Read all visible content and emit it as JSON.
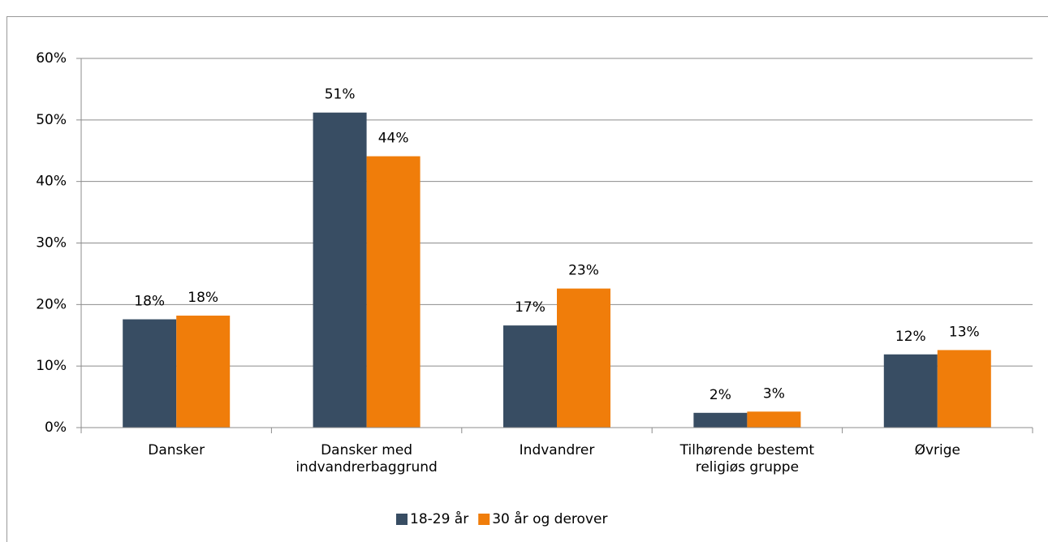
{
  "chart_data": {
    "type": "bar",
    "categories": [
      "Dansker",
      "Dansker med indvandrerbaggrund",
      "Indvandrer",
      "Tilhørende bestemt religiøs gruppe",
      "Øvrige"
    ],
    "series": [
      {
        "name": "18-29 år",
        "color": "#384d63",
        "values": [
          17.6,
          51.2,
          16.6,
          2.4,
          11.9
        ],
        "value_labels": [
          "18%",
          "51%",
          "17%",
          "2%",
          "12%"
        ]
      },
      {
        "name": "30 år og derover",
        "color": "#f07d0a",
        "values": [
          18.2,
          44.1,
          22.6,
          2.6,
          12.6
        ],
        "value_labels": [
          "18%",
          "44%",
          "23%",
          "3%",
          "13%"
        ]
      }
    ],
    "ylim": [
      0,
      60
    ],
    "yticks": [
      {
        "value": 0,
        "label": "0%"
      },
      {
        "value": 10,
        "label": "10%"
      },
      {
        "value": 20,
        "label": "20%"
      },
      {
        "value": 30,
        "label": "30%"
      },
      {
        "value": 40,
        "label": "40%"
      },
      {
        "value": 50,
        "label": "50%"
      },
      {
        "value": 60,
        "label": "60%"
      }
    ],
    "grid": true,
    "legend": "bottom"
  }
}
